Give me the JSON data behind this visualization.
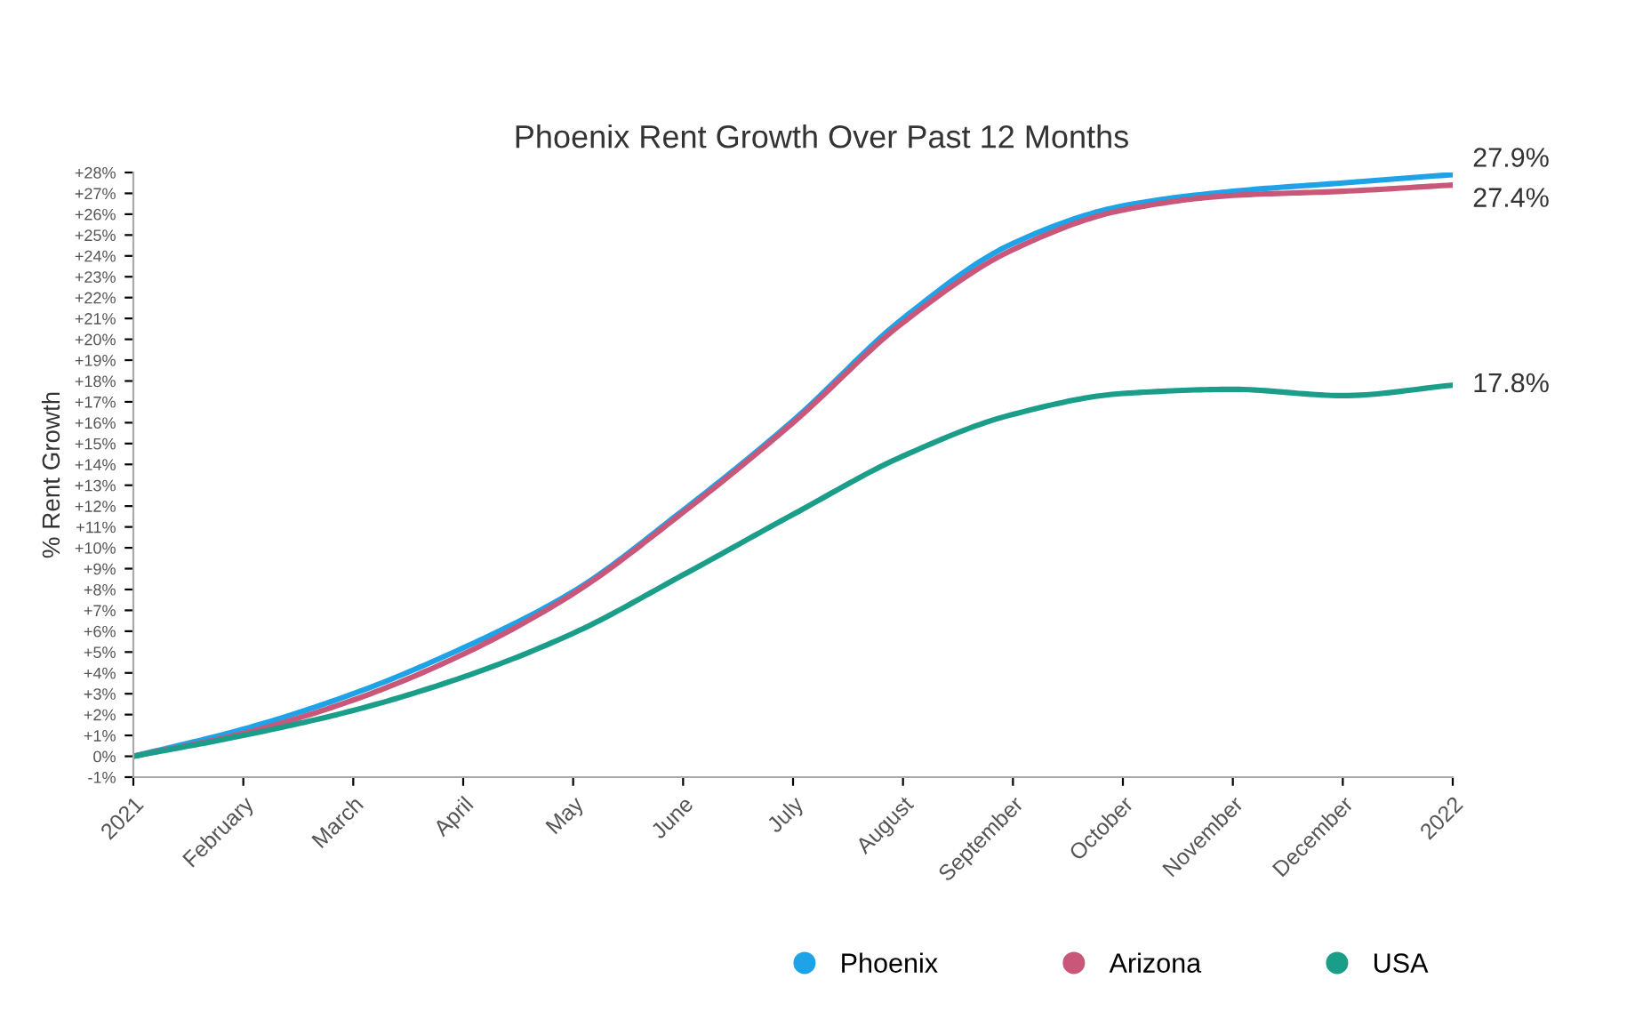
{
  "chart_data": {
    "type": "line",
    "title": "Phoenix Rent Growth Over Past 12 Months",
    "ylabel": "% Rent Growth",
    "categories": [
      "2021",
      "February",
      "March",
      "April",
      "May",
      "June",
      "July",
      "August",
      "September",
      "October",
      "November",
      "December",
      "2022"
    ],
    "series": [
      {
        "name": "Phoenix",
        "color": "#1fa3e8",
        "values": [
          0,
          1.3,
          3.0,
          5.2,
          7.9,
          11.8,
          16.1,
          21.0,
          24.6,
          26.4,
          27.1,
          27.5,
          27.9
        ],
        "value_labels": [
          null,
          null,
          null,
          null,
          null,
          null,
          null,
          null,
          null,
          null,
          null,
          null,
          "27.9%"
        ]
      },
      {
        "name": "Arizona",
        "color": "#c8577a",
        "values": [
          0,
          1.1,
          2.7,
          4.9,
          7.8,
          11.7,
          16.0,
          20.8,
          24.3,
          26.2,
          26.9,
          27.1,
          27.4
        ],
        "value_labels": [
          null,
          null,
          null,
          null,
          null,
          null,
          null,
          null,
          null,
          null,
          null,
          null,
          "27.4%"
        ]
      },
      {
        "name": "USA",
        "color": "#1a9e8a",
        "values": [
          0,
          1.0,
          2.2,
          3.8,
          5.9,
          8.7,
          11.6,
          14.4,
          16.4,
          17.4,
          17.6,
          17.3,
          17.8
        ],
        "value_labels": [
          null,
          null,
          null,
          null,
          null,
          null,
          null,
          null,
          null,
          null,
          null,
          null,
          "17.8%"
        ]
      }
    ],
    "ylim": [
      -1,
      28
    ],
    "yticks": [
      {
        "value": -1,
        "label": "-1%"
      },
      {
        "value": 0,
        "label": "0%"
      },
      {
        "value": 1,
        "label": "+1%"
      },
      {
        "value": 2,
        "label": "+2%"
      },
      {
        "value": 3,
        "label": "+3%"
      },
      {
        "value": 4,
        "label": "+4%"
      },
      {
        "value": 5,
        "label": "+5%"
      },
      {
        "value": 6,
        "label": "+6%"
      },
      {
        "value": 7,
        "label": "+7%"
      },
      {
        "value": 8,
        "label": "+8%"
      },
      {
        "value": 9,
        "label": "+9%"
      },
      {
        "value": 10,
        "label": "+10%"
      },
      {
        "value": 11,
        "label": "+11%"
      },
      {
        "value": 12,
        "label": "+12%"
      },
      {
        "value": 13,
        "label": "+13%"
      },
      {
        "value": 14,
        "label": "+14%"
      },
      {
        "value": 15,
        "label": "+15%"
      },
      {
        "value": 16,
        "label": "+16%"
      },
      {
        "value": 17,
        "label": "+17%"
      },
      {
        "value": 18,
        "label": "+18%"
      },
      {
        "value": 19,
        "label": "+19%"
      },
      {
        "value": 20,
        "label": "+20%"
      },
      {
        "value": 21,
        "label": "+21%"
      },
      {
        "value": 22,
        "label": "+22%"
      },
      {
        "value": 23,
        "label": "+23%"
      },
      {
        "value": 24,
        "label": "+24%"
      },
      {
        "value": 25,
        "label": "+25%"
      },
      {
        "value": 26,
        "label": "+26%"
      },
      {
        "value": 27,
        "label": "+27%"
      },
      {
        "value": 28,
        "label": "+28%"
      }
    ],
    "grid": false,
    "legend": "bottom",
    "marker": "none",
    "line_style": "solid"
  }
}
